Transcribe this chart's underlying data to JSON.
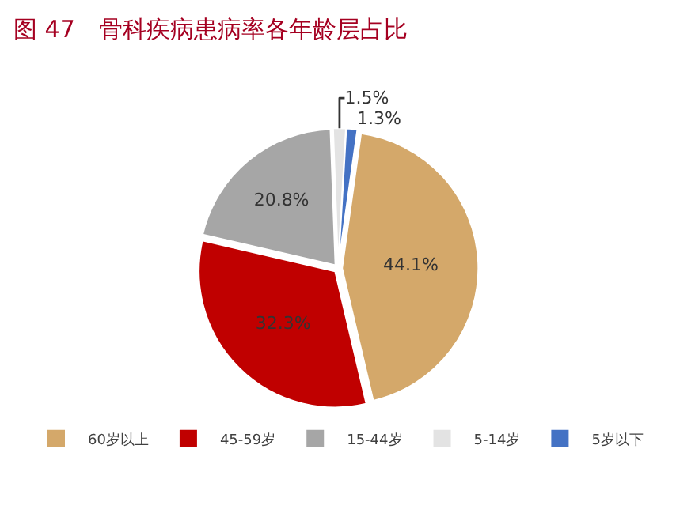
{
  "chart_data": {
    "type": "pie",
    "title": "图 47　骨科疾病患病率各年龄层占比",
    "categories": [
      "60岁以上",
      "45-59岁",
      "15-44岁",
      "5-14岁",
      "5岁以下"
    ],
    "values": [
      44.1,
      32.3,
      20.8,
      1.5,
      1.3
    ],
    "value_labels": [
      "44.1%",
      "32.3%",
      "20.8%",
      "1.5%",
      "1.3%"
    ],
    "colors": [
      "#d4a86a",
      "#c00000",
      "#a6a6a6",
      "#e3e3e3",
      "#4472c4"
    ],
    "legend": "bottom"
  }
}
